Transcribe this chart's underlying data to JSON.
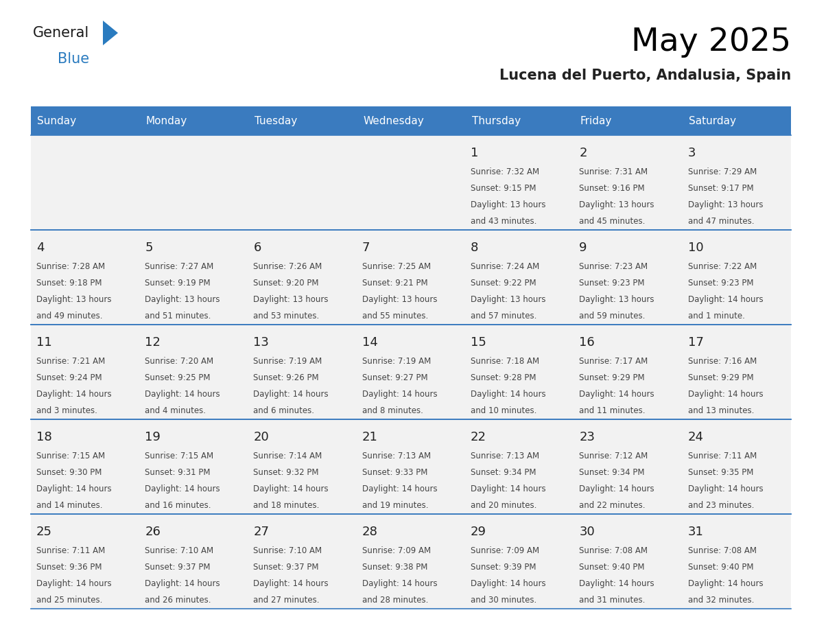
{
  "title": "May 2025",
  "subtitle": "Lucena del Puerto, Andalusia, Spain",
  "days_of_week": [
    "Sunday",
    "Monday",
    "Tuesday",
    "Wednesday",
    "Thursday",
    "Friday",
    "Saturday"
  ],
  "header_bg_color": "#3a7bbf",
  "header_text_color": "#ffffff",
  "cell_bg_color": "#f2f2f2",
  "cell_bg_white": "#ffffff",
  "day_number_color": "#222222",
  "text_color": "#444444",
  "line_color": "#3a7bbf",
  "calendar_data": [
    [
      null,
      null,
      null,
      null,
      {
        "day": 1,
        "sunrise": "7:32 AM",
        "sunset": "9:15 PM",
        "daylight": "13 hours",
        "daylight2": "and 43 minutes."
      },
      {
        "day": 2,
        "sunrise": "7:31 AM",
        "sunset": "9:16 PM",
        "daylight": "13 hours",
        "daylight2": "and 45 minutes."
      },
      {
        "day": 3,
        "sunrise": "7:29 AM",
        "sunset": "9:17 PM",
        "daylight": "13 hours",
        "daylight2": "and 47 minutes."
      }
    ],
    [
      {
        "day": 4,
        "sunrise": "7:28 AM",
        "sunset": "9:18 PM",
        "daylight": "13 hours",
        "daylight2": "and 49 minutes."
      },
      {
        "day": 5,
        "sunrise": "7:27 AM",
        "sunset": "9:19 PM",
        "daylight": "13 hours",
        "daylight2": "and 51 minutes."
      },
      {
        "day": 6,
        "sunrise": "7:26 AM",
        "sunset": "9:20 PM",
        "daylight": "13 hours",
        "daylight2": "and 53 minutes."
      },
      {
        "day": 7,
        "sunrise": "7:25 AM",
        "sunset": "9:21 PM",
        "daylight": "13 hours",
        "daylight2": "and 55 minutes."
      },
      {
        "day": 8,
        "sunrise": "7:24 AM",
        "sunset": "9:22 PM",
        "daylight": "13 hours",
        "daylight2": "and 57 minutes."
      },
      {
        "day": 9,
        "sunrise": "7:23 AM",
        "sunset": "9:23 PM",
        "daylight": "13 hours",
        "daylight2": "and 59 minutes."
      },
      {
        "day": 10,
        "sunrise": "7:22 AM",
        "sunset": "9:23 PM",
        "daylight": "14 hours",
        "daylight2": "and 1 minute."
      }
    ],
    [
      {
        "day": 11,
        "sunrise": "7:21 AM",
        "sunset": "9:24 PM",
        "daylight": "14 hours",
        "daylight2": "and 3 minutes."
      },
      {
        "day": 12,
        "sunrise": "7:20 AM",
        "sunset": "9:25 PM",
        "daylight": "14 hours",
        "daylight2": "and 4 minutes."
      },
      {
        "day": 13,
        "sunrise": "7:19 AM",
        "sunset": "9:26 PM",
        "daylight": "14 hours",
        "daylight2": "and 6 minutes."
      },
      {
        "day": 14,
        "sunrise": "7:19 AM",
        "sunset": "9:27 PM",
        "daylight": "14 hours",
        "daylight2": "and 8 minutes."
      },
      {
        "day": 15,
        "sunrise": "7:18 AM",
        "sunset": "9:28 PM",
        "daylight": "14 hours",
        "daylight2": "and 10 minutes."
      },
      {
        "day": 16,
        "sunrise": "7:17 AM",
        "sunset": "9:29 PM",
        "daylight": "14 hours",
        "daylight2": "and 11 minutes."
      },
      {
        "day": 17,
        "sunrise": "7:16 AM",
        "sunset": "9:29 PM",
        "daylight": "14 hours",
        "daylight2": "and 13 minutes."
      }
    ],
    [
      {
        "day": 18,
        "sunrise": "7:15 AM",
        "sunset": "9:30 PM",
        "daylight": "14 hours",
        "daylight2": "and 14 minutes."
      },
      {
        "day": 19,
        "sunrise": "7:15 AM",
        "sunset": "9:31 PM",
        "daylight": "14 hours",
        "daylight2": "and 16 minutes."
      },
      {
        "day": 20,
        "sunrise": "7:14 AM",
        "sunset": "9:32 PM",
        "daylight": "14 hours",
        "daylight2": "and 18 minutes."
      },
      {
        "day": 21,
        "sunrise": "7:13 AM",
        "sunset": "9:33 PM",
        "daylight": "14 hours",
        "daylight2": "and 19 minutes."
      },
      {
        "day": 22,
        "sunrise": "7:13 AM",
        "sunset": "9:34 PM",
        "daylight": "14 hours",
        "daylight2": "and 20 minutes."
      },
      {
        "day": 23,
        "sunrise": "7:12 AM",
        "sunset": "9:34 PM",
        "daylight": "14 hours",
        "daylight2": "and 22 minutes."
      },
      {
        "day": 24,
        "sunrise": "7:11 AM",
        "sunset": "9:35 PM",
        "daylight": "14 hours",
        "daylight2": "and 23 minutes."
      }
    ],
    [
      {
        "day": 25,
        "sunrise": "7:11 AM",
        "sunset": "9:36 PM",
        "daylight": "14 hours",
        "daylight2": "and 25 minutes."
      },
      {
        "day": 26,
        "sunrise": "7:10 AM",
        "sunset": "9:37 PM",
        "daylight": "14 hours",
        "daylight2": "and 26 minutes."
      },
      {
        "day": 27,
        "sunrise": "7:10 AM",
        "sunset": "9:37 PM",
        "daylight": "14 hours",
        "daylight2": "and 27 minutes."
      },
      {
        "day": 28,
        "sunrise": "7:09 AM",
        "sunset": "9:38 PM",
        "daylight": "14 hours",
        "daylight2": "and 28 minutes."
      },
      {
        "day": 29,
        "sunrise": "7:09 AM",
        "sunset": "9:39 PM",
        "daylight": "14 hours",
        "daylight2": "and 30 minutes."
      },
      {
        "day": 30,
        "sunrise": "7:08 AM",
        "sunset": "9:40 PM",
        "daylight": "14 hours",
        "daylight2": "and 31 minutes."
      },
      {
        "day": 31,
        "sunrise": "7:08 AM",
        "sunset": "9:40 PM",
        "daylight": "14 hours",
        "daylight2": "and 32 minutes."
      }
    ]
  ],
  "logo_text_general": "General",
  "logo_text_blue": "Blue",
  "logo_color_general": "#1a1a1a",
  "logo_color_blue": "#2a7bbf",
  "logo_triangle_color": "#2a7bbf"
}
